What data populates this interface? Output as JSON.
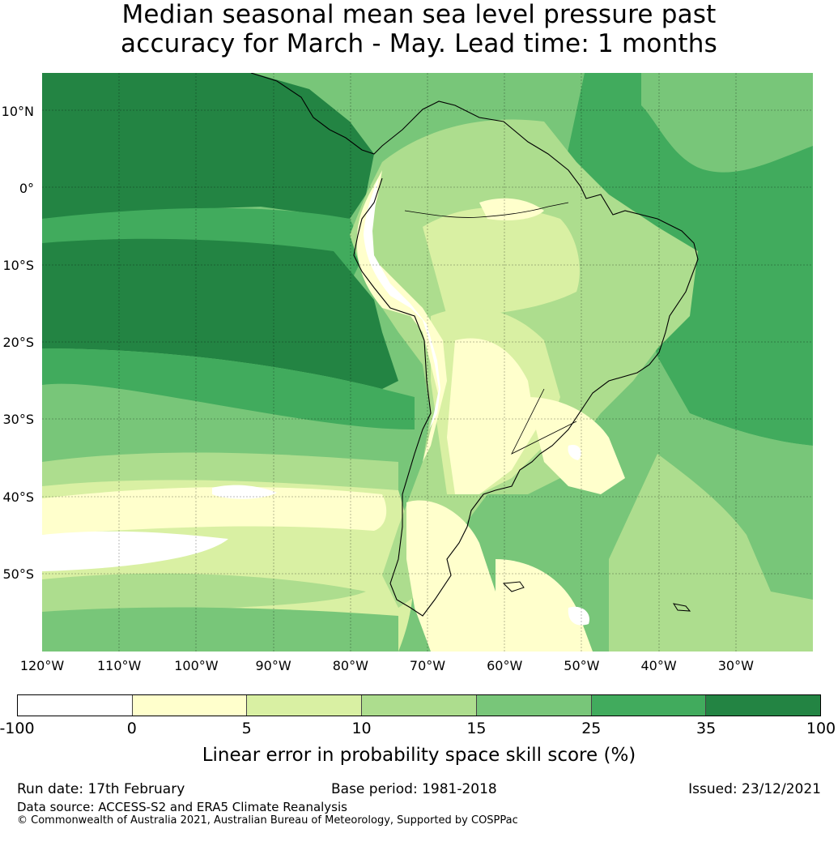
{
  "title": {
    "line1": "Median seasonal mean sea level pressure past",
    "line2": "accuracy for March - May. Lead time: 1 months"
  },
  "map": {
    "lat_labels": [
      "10°N",
      "0°",
      "10°S",
      "20°S",
      "30°S",
      "40°S",
      "50°S"
    ],
    "lat_values": [
      10,
      0,
      -10,
      -20,
      -30,
      -40,
      -50
    ],
    "lon_labels": [
      "120°W",
      "110°W",
      "100°W",
      "90°W",
      "80°W",
      "70°W",
      "60°W",
      "50°W",
      "40°W",
      "30°W"
    ],
    "lon_values": [
      -120,
      -110,
      -100,
      -90,
      -80,
      -70,
      -60,
      -50,
      -40,
      -30
    ],
    "extent": {
      "lon_min": -120,
      "lon_max": -20,
      "lat_min": -60,
      "lat_max": 15
    }
  },
  "colorbar": {
    "ticks": [
      "-100",
      "0",
      "5",
      "10",
      "15",
      "25",
      "35",
      "100"
    ],
    "colors": [
      "#ffffff",
      "#ffffcc",
      "#d9f0a3",
      "#addd8e",
      "#78c679",
      "#41ab5d",
      "#238443"
    ],
    "label": "Linear error in probability space skill score (%)"
  },
  "footer": {
    "run_date": "Run date: 17th February",
    "base_period": "Base period: 1981-2018",
    "issued": "Issued: 23/12/2021",
    "data_source": "Data source: ACCESS-S2 and ERA5 Climate Reanalysis",
    "copyright": "© Commonwealth of Australia 2021, Australian Bureau of Meteorology, Supported by COSPPac"
  }
}
